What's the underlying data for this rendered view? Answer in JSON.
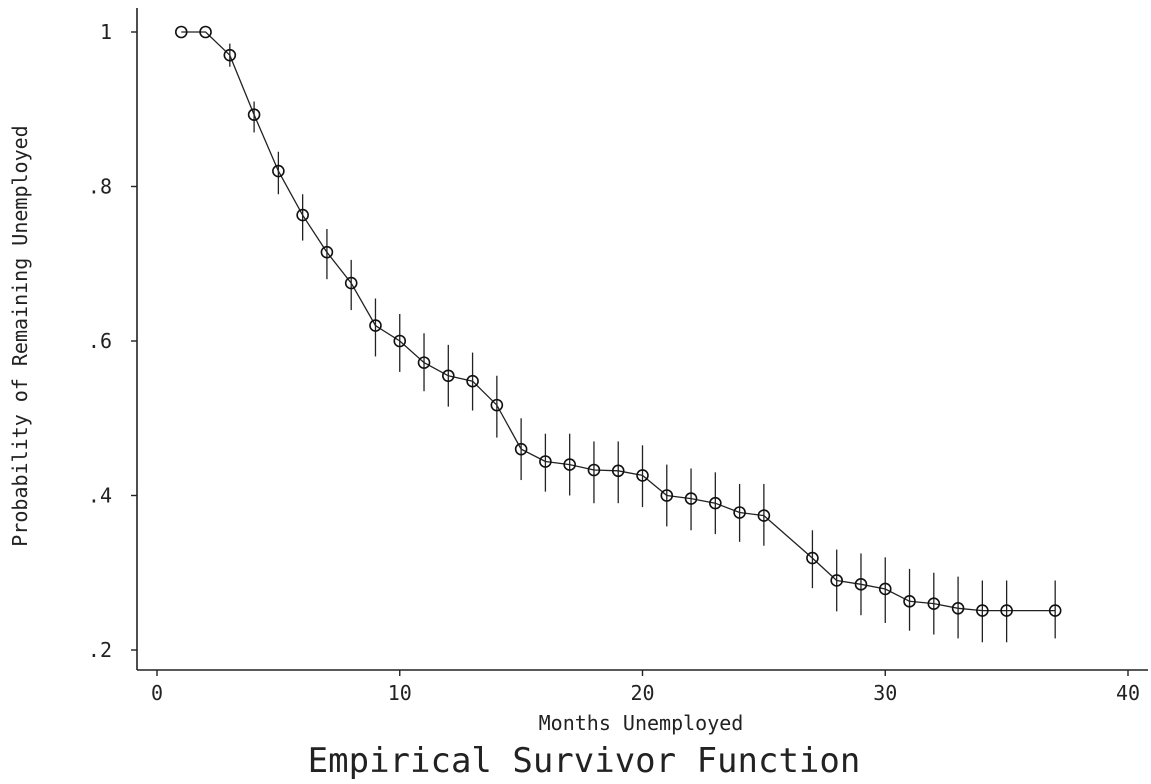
{
  "chart_data": {
    "type": "scatter",
    "title": "Empirical Survivor Function",
    "xlabel": "Months Unemployed",
    "ylabel": "Probability of Remaining Unemployed",
    "xlim": [
      0,
      40
    ],
    "ylim": [
      0.2,
      1.0
    ],
    "x_ticks": [
      0,
      10,
      20,
      30,
      40
    ],
    "x_tick_labels": [
      "0",
      "10",
      "20",
      "30",
      "40"
    ],
    "y_ticks": [
      0.2,
      0.4,
      0.6,
      0.8,
      1.0
    ],
    "y_tick_labels": [
      ".2",
      ".4",
      ".6",
      ".8",
      "1"
    ],
    "grid": false,
    "connected": true,
    "series": [
      {
        "x": [
          1,
          2,
          3,
          4,
          5,
          6,
          7,
          8,
          9,
          10,
          11,
          12,
          13,
          14,
          15,
          16,
          17,
          18,
          19,
          20,
          21,
          22,
          23,
          24,
          25,
          27,
          28,
          29,
          30,
          31,
          32,
          33,
          34,
          35,
          37
        ],
        "y": [
          1.0,
          1.0,
          0.97,
          0.893,
          0.82,
          0.763,
          0.715,
          0.675,
          0.62,
          0.6,
          0.572,
          0.555,
          0.548,
          0.517,
          0.46,
          0.444,
          0.44,
          0.433,
          0.432,
          0.426,
          0.4,
          0.396,
          0.39,
          0.378,
          0.374,
          0.319,
          0.29,
          0.285,
          0.279,
          0.263,
          0.26,
          0.254,
          0.251,
          0.251,
          0.251
        ],
        "lower": [
          1.0,
          1.0,
          0.955,
          0.87,
          0.79,
          0.73,
          0.68,
          0.64,
          0.58,
          0.56,
          0.535,
          0.515,
          0.51,
          0.475,
          0.42,
          0.405,
          0.4,
          0.39,
          0.39,
          0.385,
          0.36,
          0.355,
          0.35,
          0.34,
          0.335,
          0.28,
          0.25,
          0.245,
          0.235,
          0.225,
          0.22,
          0.215,
          0.21,
          0.21,
          0.215
        ],
        "upper": [
          1.0,
          1.0,
          0.985,
          0.91,
          0.845,
          0.79,
          0.745,
          0.705,
          0.655,
          0.635,
          0.61,
          0.595,
          0.585,
          0.555,
          0.5,
          0.48,
          0.48,
          0.47,
          0.47,
          0.465,
          0.44,
          0.435,
          0.43,
          0.415,
          0.415,
          0.355,
          0.33,
          0.325,
          0.32,
          0.305,
          0.3,
          0.295,
          0.29,
          0.29,
          0.29
        ]
      }
    ]
  }
}
